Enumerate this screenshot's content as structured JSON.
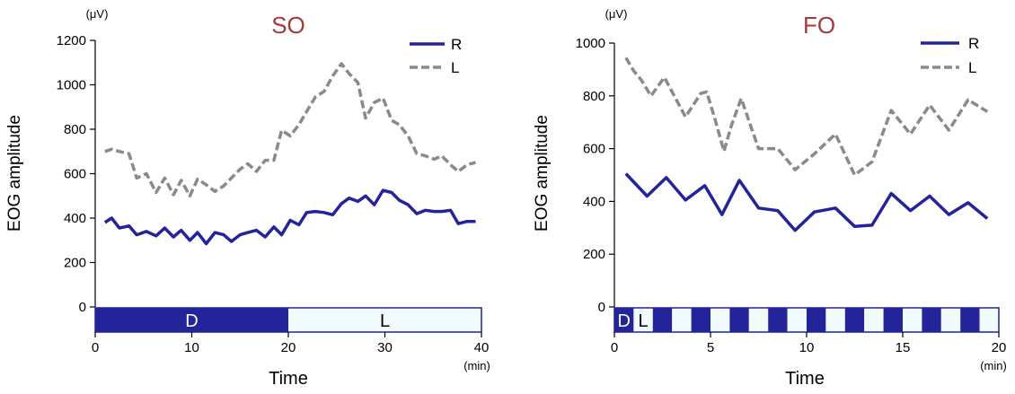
{
  "colors": {
    "R": "#23239a",
    "L": "#8a8a8a",
    "title": "#a33a3a",
    "dark_bar": "#23239a",
    "light_bar": "#f1fafd",
    "axis": "#000000"
  },
  "chart_data": [
    {
      "type": "line",
      "title": "SO",
      "ylabel": "EOG amplitude",
      "yunit": "(μV)",
      "xlabel": "Time",
      "xunit": "(min)",
      "xlim": [
        0,
        40
      ],
      "ylim": [
        0,
        1200
      ],
      "xticks": [
        "0",
        "10",
        "20",
        "30",
        "40"
      ],
      "yticks": [
        "0",
        "200",
        "400",
        "600",
        "800",
        "1000",
        "1200"
      ],
      "legend_position": "top-right",
      "legend": [
        "R",
        "L"
      ],
      "light_dark_bar": [
        {
          "label": "D",
          "start": 0,
          "end": 20,
          "phase": "dark"
        },
        {
          "label": "L",
          "start": 20,
          "end": 40,
          "phase": "light"
        }
      ],
      "series": [
        {
          "name": "R",
          "x": [
            1,
            1.7,
            2.5,
            3.5,
            4.3,
            5.3,
            6.3,
            7.2,
            8.1,
            8.9,
            9.8,
            10.6,
            11.5,
            12.4,
            13.3,
            14.1,
            15,
            15.8,
            16.7,
            17.6,
            18.5,
            19.3,
            20.2,
            21.1,
            21.9,
            22.8,
            23.7,
            24.6,
            25.5,
            26.3,
            27.2,
            28,
            28.9,
            29.8,
            30.7,
            31.5,
            32.4,
            33.3,
            34.2,
            35.1,
            35.9,
            36.8,
            37.6,
            38.5,
            39.4
          ],
          "values": [
            380,
            400,
            355,
            365,
            325,
            340,
            320,
            355,
            315,
            345,
            300,
            335,
            285,
            335,
            325,
            295,
            325,
            335,
            345,
            315,
            360,
            325,
            390,
            370,
            425,
            430,
            425,
            415,
            465,
            490,
            475,
            500,
            460,
            525,
            515,
            480,
            460,
            420,
            435,
            430,
            430,
            435,
            375,
            385,
            385
          ]
        },
        {
          "name": "L",
          "x": [
            1,
            1.7,
            2.5,
            3.5,
            4.3,
            5.3,
            6.3,
            7.2,
            8.1,
            8.9,
            9.8,
            10.6,
            11.5,
            12.4,
            13.3,
            14.1,
            15,
            15.8,
            16.7,
            17.6,
            18.5,
            19.3,
            20.2,
            21.1,
            21.9,
            22.8,
            23.7,
            24.6,
            25.5,
            26.3,
            27.2,
            28,
            28.9,
            29.8,
            30.7,
            31.5,
            32.4,
            33.3,
            34.2,
            35.1,
            35.9,
            36.8,
            37.6,
            38.5,
            39.4
          ],
          "values": [
            700,
            710,
            700,
            690,
            580,
            600,
            515,
            580,
            505,
            570,
            500,
            575,
            550,
            520,
            545,
            580,
            620,
            645,
            610,
            660,
            660,
            795,
            770,
            820,
            880,
            945,
            970,
            1040,
            1095,
            1050,
            1010,
            850,
            920,
            940,
            840,
            820,
            770,
            690,
            680,
            665,
            680,
            640,
            610,
            640,
            650
          ]
        }
      ]
    },
    {
      "type": "line",
      "title": "FO",
      "ylabel": "EOG amplitude",
      "yunit": "(μV)",
      "xlabel": "Time",
      "xunit": "(min)",
      "xlim": [
        0,
        20
      ],
      "ylim": [
        0,
        1000
      ],
      "xticks": [
        "0",
        "5",
        "10",
        "15",
        "20"
      ],
      "yticks": [
        "0",
        "200",
        "400",
        "600",
        "800",
        "1000"
      ],
      "legend_position": "top-right",
      "legend": [
        "R",
        "L"
      ],
      "light_dark_bar": [
        {
          "label": "D",
          "start": 0,
          "end": 1,
          "phase": "dark"
        },
        {
          "label": "L",
          "start": 1,
          "end": 2,
          "phase": "light"
        },
        {
          "label": "",
          "start": 2,
          "end": 3,
          "phase": "dark"
        },
        {
          "label": "",
          "start": 3,
          "end": 4,
          "phase": "light"
        },
        {
          "label": "",
          "start": 4,
          "end": 5,
          "phase": "dark"
        },
        {
          "label": "",
          "start": 5,
          "end": 6,
          "phase": "light"
        },
        {
          "label": "",
          "start": 6,
          "end": 7,
          "phase": "dark"
        },
        {
          "label": "",
          "start": 7,
          "end": 8,
          "phase": "light"
        },
        {
          "label": "",
          "start": 8,
          "end": 9,
          "phase": "dark"
        },
        {
          "label": "",
          "start": 9,
          "end": 10,
          "phase": "light"
        },
        {
          "label": "",
          "start": 10,
          "end": 11,
          "phase": "dark"
        },
        {
          "label": "",
          "start": 11,
          "end": 12,
          "phase": "light"
        },
        {
          "label": "",
          "start": 12,
          "end": 13,
          "phase": "dark"
        },
        {
          "label": "",
          "start": 13,
          "end": 14,
          "phase": "light"
        },
        {
          "label": "",
          "start": 14,
          "end": 15,
          "phase": "dark"
        },
        {
          "label": "",
          "start": 15,
          "end": 16,
          "phase": "light"
        },
        {
          "label": "",
          "start": 16,
          "end": 17,
          "phase": "dark"
        },
        {
          "label": "",
          "start": 17,
          "end": 18,
          "phase": "light"
        },
        {
          "label": "",
          "start": 18,
          "end": 19,
          "phase": "dark"
        },
        {
          "label": "",
          "start": 19,
          "end": 20,
          "phase": "light"
        }
      ],
      "series": [
        {
          "name": "R",
          "x": [
            0.6,
            1.7,
            2.7,
            3.7,
            4.7,
            5.6,
            6.5,
            7.5,
            8.5,
            9.4,
            10.4,
            11.5,
            12.5,
            13.4,
            14.4,
            15.4,
            16.4,
            17.4,
            18.4,
            19.4
          ],
          "values": [
            505,
            420,
            490,
            405,
            460,
            350,
            480,
            375,
            365,
            290,
            360,
            375,
            305,
            310,
            430,
            365,
            420,
            350,
            395,
            335
          ]
        },
        {
          "name": "L",
          "x": [
            0.6,
            1,
            1.4,
            1.9,
            2.6,
            3.7,
            4.5,
            4.8,
            5.2,
            5.7,
            6.1,
            6.6,
            7.5,
            8.5,
            9.4,
            10.4,
            11.5,
            12.5,
            13.4,
            14.4,
            15.4,
            16.4,
            17.4,
            18.4,
            19.4
          ],
          "values": [
            945,
            895,
            860,
            800,
            870,
            720,
            810,
            815,
            720,
            590,
            690,
            790,
            600,
            600,
            520,
            580,
            655,
            500,
            550,
            745,
            655,
            765,
            670,
            785,
            740
          ]
        }
      ]
    }
  ]
}
